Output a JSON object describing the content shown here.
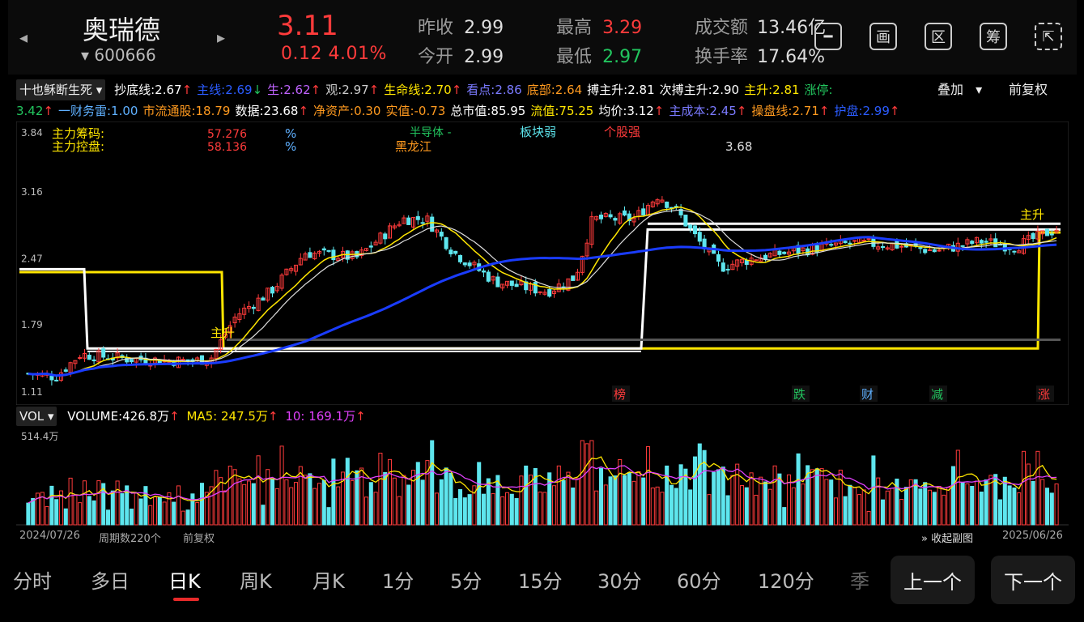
{
  "header": {
    "name": "奥瑞德",
    "code": "▾ 600666",
    "price": "3.11",
    "change": "0.12  4.01%",
    "quotes": [
      {
        "label": "昨收",
        "value": "2.99",
        "color": "#dddddd"
      },
      {
        "label": "今开",
        "value": "2.99",
        "color": "#dddddd"
      },
      {
        "label": "最高",
        "value": "3.29",
        "color": "#ff3b3b"
      },
      {
        "label": "最低",
        "value": "2.97",
        "color": "#22c55e"
      },
      {
        "label": "成交额",
        "value": "13.46亿",
        "color": "#dddddd"
      },
      {
        "label": "换手率",
        "value": "17.64%",
        "color": "#dddddd"
      }
    ],
    "toolbar_icons": [
      "minus-box-icon",
      "画",
      "区",
      "筹",
      "share-icon"
    ]
  },
  "indicators": {
    "dropdown": "十也稣断生死",
    "overlay": "叠加",
    "adjust": "前复权",
    "items": [
      {
        "label": "抄底线:2.67",
        "arrow": "↑",
        "color": "#ffffff",
        "arrowColor": "#ff3b3b"
      },
      {
        "label": "主线:2.69",
        "arrow": "↓",
        "color": "#2b5cff",
        "arrowColor": "#22c55e"
      },
      {
        "label": "生:2.62",
        "arrow": "↑",
        "color": "#c063ff",
        "arrowColor": "#ff3b3b"
      },
      {
        "label": "观:2.97",
        "arrow": "↑",
        "color": "#cccccc",
        "arrowColor": "#ff3b3b"
      },
      {
        "label": "生命线:2.70",
        "arrow": "↑",
        "color": "#ffe600",
        "arrowColor": "#ff3b3b"
      },
      {
        "label": "看点:2.86",
        "arrow": "",
        "color": "#7a7aff",
        "arrowColor": "#ff3b3b"
      },
      {
        "label": "底部:2.64",
        "arrow": "",
        "color": "#ff9a1f",
        "arrowColor": "#ff3b3b"
      },
      {
        "label": "搏主升:2.81",
        "arrow": "",
        "color": "#ffffff",
        "arrowColor": "#ff3b3b"
      },
      {
        "label": "次搏主升:2.90",
        "arrow": "",
        "color": "#ffffff",
        "arrowColor": "#ff3b3b"
      },
      {
        "label": "主升:2.81",
        "arrow": "",
        "color": "#ffe600",
        "arrowColor": "#ff3b3b"
      },
      {
        "label": "涨停:",
        "arrow": "",
        "color": "#22c55e",
        "arrowColor": "#ff3b3b"
      }
    ],
    "items2": [
      {
        "label": "3.42",
        "arrow": "↑",
        "color": "#22c55e",
        "arrowColor": "#ff3b3b"
      },
      {
        "label": "一财务雷:1.00",
        "arrow": "",
        "color": "#5fb0ff",
        "arrowColor": "#ff3b3b"
      },
      {
        "label": "市流通股:18.79",
        "arrow": "",
        "color": "#ff9a1f",
        "arrowColor": "#ff3b3b"
      },
      {
        "label": "数据:23.68",
        "arrow": "↑",
        "color": "#ffffff",
        "arrowColor": "#ff3b3b"
      },
      {
        "label": "净资产:0.30",
        "arrow": "",
        "color": "#ff9a1f",
        "arrowColor": "#ff3b3b"
      },
      {
        "label": "实值:-0.73",
        "arrow": "",
        "color": "#ff9a1f",
        "arrowColor": "#ff3b3b"
      },
      {
        "label": "总市值:85.95",
        "arrow": "",
        "color": "#ffffff",
        "arrowColor": "#ff3b3b"
      },
      {
        "label": "流值:75.25",
        "arrow": "",
        "color": "#ffe600",
        "arrowColor": "#ff3b3b"
      },
      {
        "label": "均价:3.12",
        "arrow": "↑",
        "color": "#ffffff",
        "arrowColor": "#ff3b3b"
      },
      {
        "label": "主成本:2.45",
        "arrow": "↑",
        "color": "#7a7aff",
        "arrowColor": "#ff3b3b"
      },
      {
        "label": "操盘线:2.71",
        "arrow": "↑",
        "color": "#ff9a1f",
        "arrowColor": "#ff3b3b"
      },
      {
        "label": "护盘:2.99",
        "arrow": "↑",
        "color": "#2b5cff",
        "arrowColor": "#ff3b3b"
      }
    ]
  },
  "chart_data": {
    "type": "candlestick",
    "y_ticks": [
      "3.84",
      "3.16",
      "2.47",
      "1.79",
      "1.11"
    ],
    "ylim": [
      1.11,
      3.84
    ],
    "high_label": "3.68",
    "annotations": {
      "chip_label_1": "主力筹码:",
      "chip_value_1": "57.276",
      "chip_label_2": "主力控盘:",
      "chip_value_2": "58.136",
      "pct": "%",
      "sector": "半导体 -",
      "region": "黑龙江",
      "sector_status": "板块弱",
      "stock_status": "个股强",
      "zhusheng": "主升",
      "markers": [
        "榜",
        "跌",
        "财",
        "减",
        "涨"
      ]
    },
    "volume": {
      "label": "VOL",
      "volume": "VOLUME:426.8万",
      "ma5": "MA5: 247.5万",
      "ma10": "10: 169.1万",
      "max_label": "514.4万",
      "max_value": 514.4
    },
    "x_start": "2024/07/26",
    "x_end": "2025/06/26",
    "period_count": "周期数220个",
    "adjust": "前复权",
    "collapse": "收起副图"
  },
  "periods": {
    "tabs": [
      "分时",
      "多日",
      "日K",
      "周K",
      "月K",
      "1分",
      "5分",
      "15分",
      "30分",
      "60分",
      "120分",
      "季"
    ],
    "active": "日K",
    "prev": "上一个",
    "next": "下一个"
  },
  "colors": {
    "up": "#ff3b3b",
    "down": "#22c55e",
    "candle_down": "#5ee6ee",
    "accent": "#e82a2a"
  }
}
